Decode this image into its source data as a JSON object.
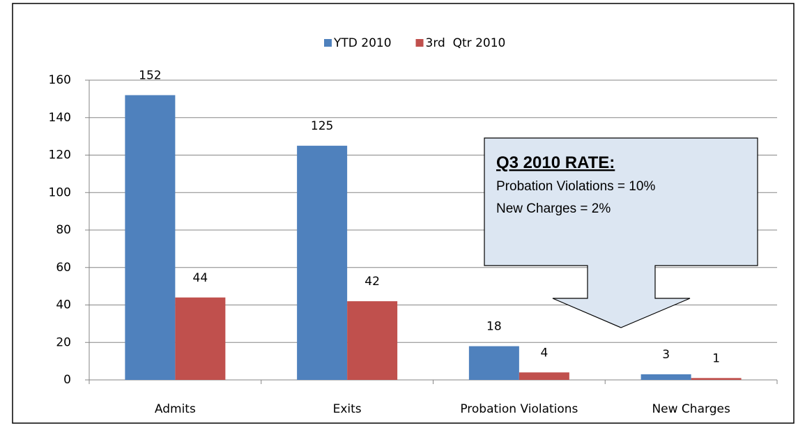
{
  "chart_data": {
    "type": "bar",
    "categories": [
      "Admits",
      "Exits",
      "Probation Violations",
      "New Charges"
    ],
    "series": [
      {
        "name": "YTD 2010",
        "color": "#4f81bd",
        "values": [
          152,
          125,
          18,
          3
        ]
      },
      {
        "name": "3rd  Qtr 2010",
        "color": "#c0504d",
        "values": [
          44,
          42,
          4,
          1
        ]
      }
    ],
    "ylim": [
      0,
      160
    ],
    "yticks": [
      0,
      20,
      40,
      60,
      80,
      100,
      120,
      140,
      160
    ],
    "grid": true,
    "legend": "top",
    "annotation": {
      "title": "Q3 2010 RATE:",
      "lines": [
        "Probation Violations = 10%",
        "New Charges = 2%"
      ]
    }
  }
}
